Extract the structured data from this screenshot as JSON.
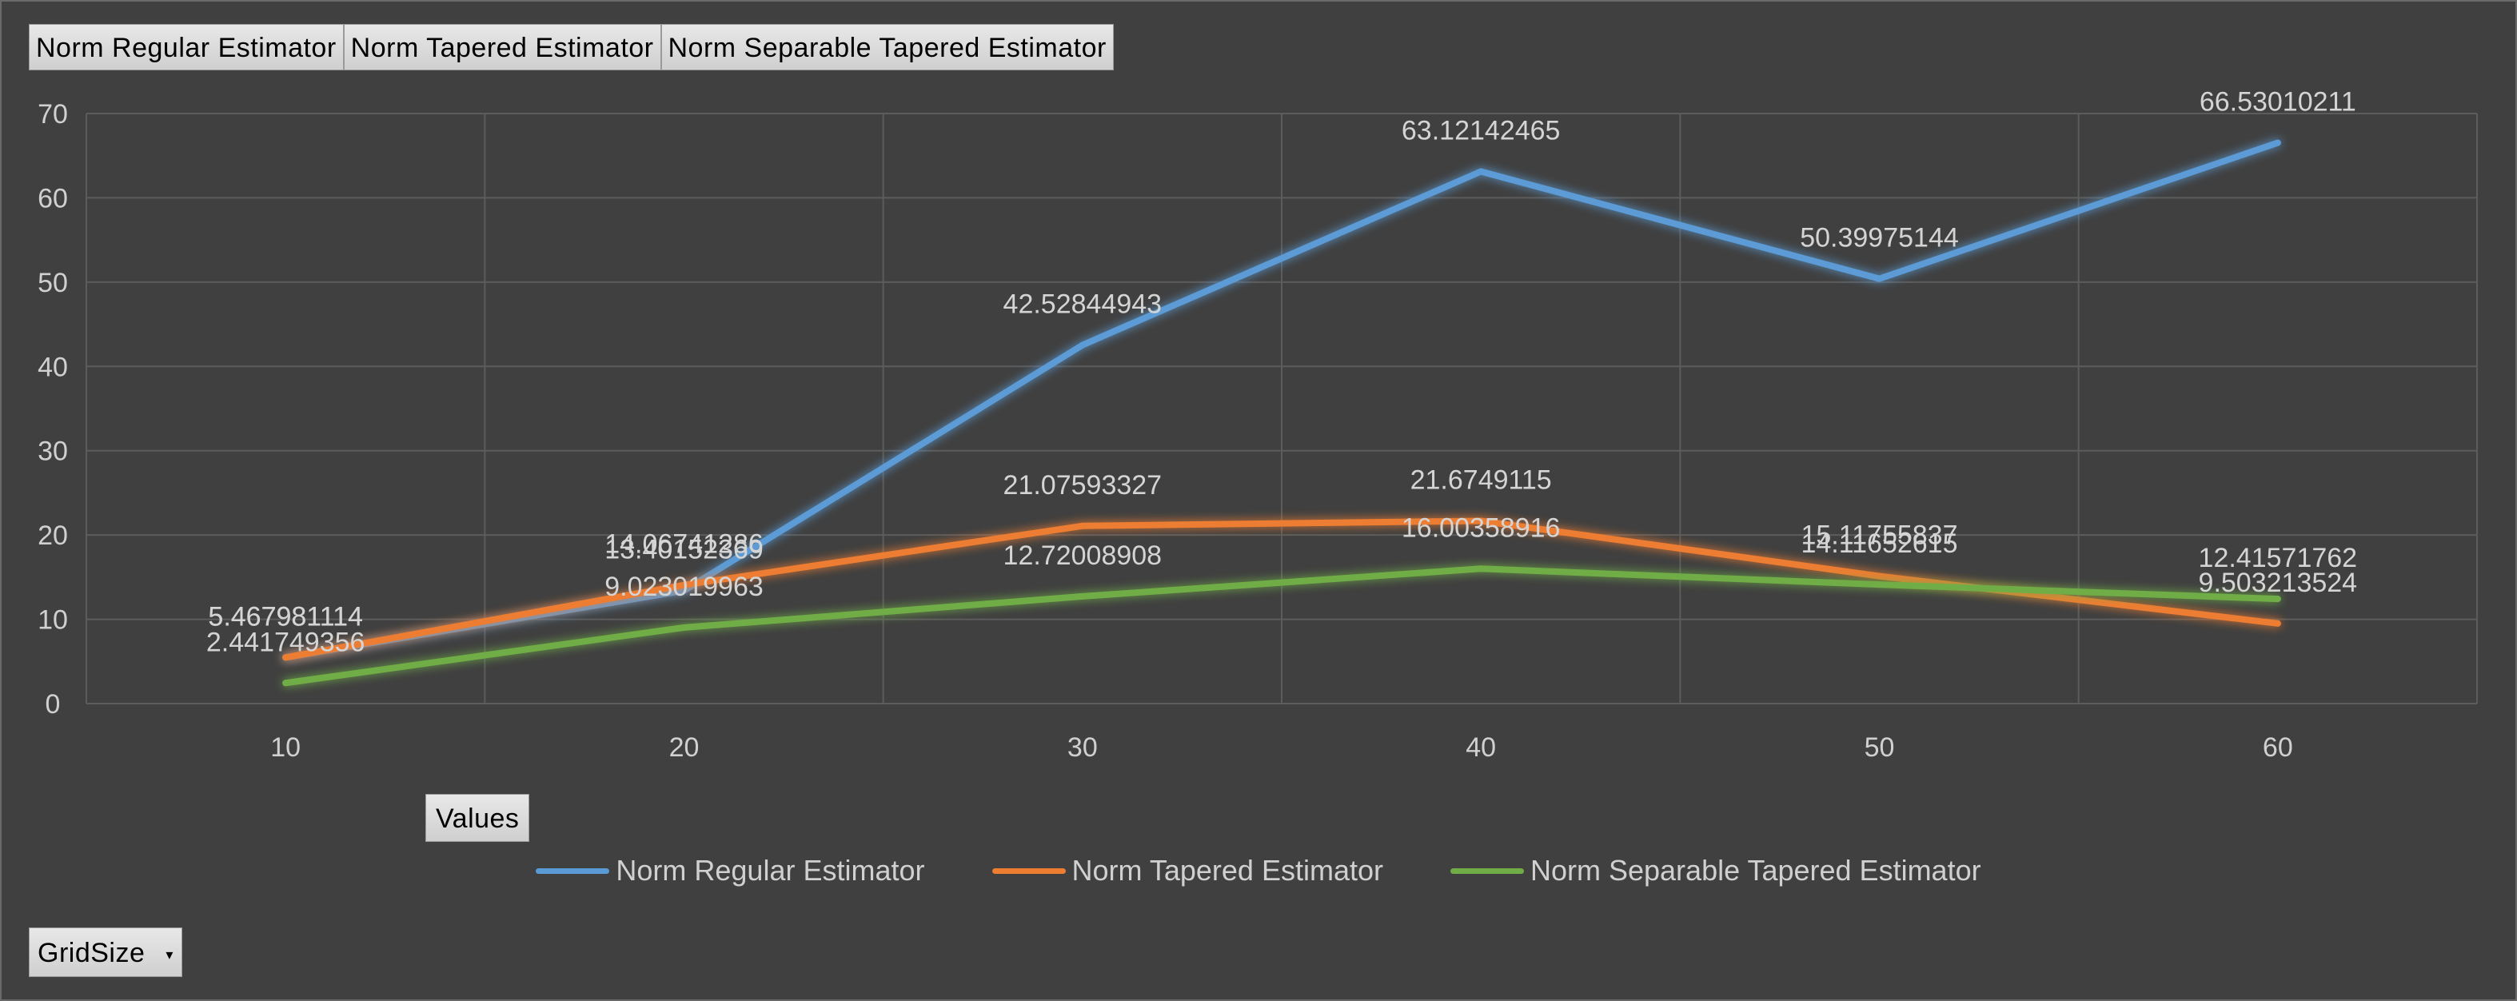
{
  "field_buttons": [
    {
      "label": "Norm  Regular  Estimator"
    },
    {
      "label": "Norm  Tapered  Estimator"
    },
    {
      "label": "Norm  Separable  Tapered  Estimator"
    }
  ],
  "values_button": {
    "label": "Values"
  },
  "gridsize_button": {
    "label": "GridSize",
    "icon": "dropdown-arrow-icon"
  },
  "chart_data": {
    "type": "line",
    "x": [
      10,
      20,
      30,
      40,
      50,
      60
    ],
    "x_tick_labels": [
      "10",
      "20",
      "30",
      "40",
      "50",
      "60"
    ],
    "ylim": [
      0,
      70
    ],
    "y_ticks": [
      0,
      10,
      20,
      30,
      40,
      50,
      60,
      70
    ],
    "y_tick_labels": [
      "0",
      "10",
      "20",
      "30",
      "40",
      "50",
      "60",
      "70"
    ],
    "grid": true,
    "legend_position": "bottom",
    "series": [
      {
        "name": "Norm Regular Estimator",
        "color": "#5b9bd5",
        "values": [
          5.467981114,
          13.40152369,
          42.52844943,
          63.12142465,
          50.39975144,
          66.53010211
        ],
        "labels": [
          "5.467981114",
          "13.40152369",
          "42.52844943",
          "63.12142465",
          "50.39975144",
          "66.53010211"
        ]
      },
      {
        "name": "Norm Tapered Estimator",
        "color": "#ed7d31",
        "values": [
          5.467981114,
          14.06741286,
          21.07593327,
          21.6749115,
          15.11755837,
          9.503213524
        ],
        "labels": [
          "5.467981114",
          "14.06741286",
          "21.07593327",
          "21.6749115",
          "15.11755837",
          "9.503213524"
        ]
      },
      {
        "name": "Norm Separable Tapered Estimator",
        "color": "#70ad47",
        "values": [
          2.441749356,
          9.023019963,
          12.72008908,
          16.00358916,
          14.11652615,
          12.41571762
        ],
        "labels": [
          "2.441749356",
          "9.023019963",
          "12.72008908",
          "16.00358916",
          "14.11652615",
          "12.41571762"
        ]
      }
    ]
  }
}
